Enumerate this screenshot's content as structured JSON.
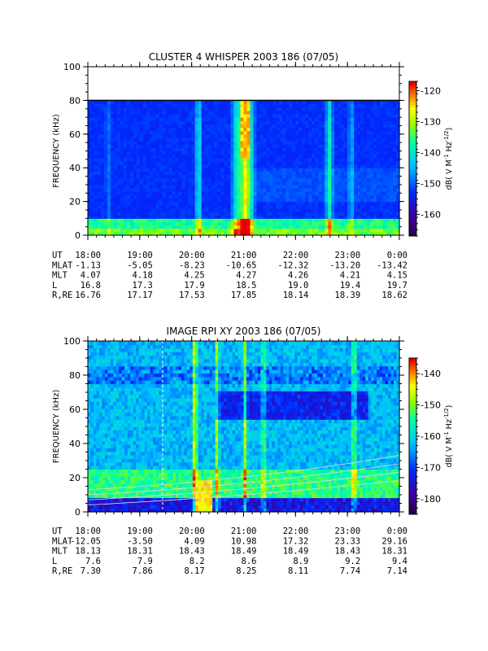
{
  "chart_data": [
    {
      "type": "heatmap",
      "title": "CLUSTER 4 WHISPER 2003 186 (07/05)",
      "ylabel": "FREQUENCY (kHz)",
      "ylim": [
        0,
        100
      ],
      "y_ticks": [
        "0",
        "20",
        "40",
        "60",
        "80",
        "100"
      ],
      "x_ticks": [
        "18:00",
        "19:00",
        "20:00",
        "21:00",
        "22:00",
        "23:00",
        "0:00"
      ],
      "colorbar": {
        "label": "dB( V M^-1 Hz^-1/2 )",
        "range": [
          -167,
          -117
        ],
        "ticks": [
          "-120",
          "-130",
          "-140",
          "-150",
          "-160"
        ]
      },
      "ephemeris": {
        "UT": [
          "18:00",
          "19:00",
          "20:00",
          "21:00",
          "22:00",
          "23:00",
          "0:00"
        ],
        "MLAT": [
          "-1.13",
          "-5.05",
          "-8.23",
          "-10.65",
          "-12.32",
          "-13.20",
          "-13.42"
        ],
        "MLT": [
          "4.07",
          "4.18",
          "4.25",
          "4.27",
          "4.26",
          "4.21",
          "4.15"
        ],
        "L": [
          "16.8",
          "17.3",
          "17.9",
          "18.5",
          "19.0",
          "19.4",
          "19.7"
        ],
        "R,RE": [
          "16.76",
          "17.17",
          "17.53",
          "17.85",
          "18.14",
          "18.39",
          "18.62"
        ]
      }
    },
    {
      "type": "heatmap",
      "title": "IMAGE RPI XY 2003 186 (07/05)",
      "ylabel": "FREQUENCY (kHz)",
      "ylim": [
        0,
        100
      ],
      "y_ticks": [
        "0",
        "20",
        "40",
        "60",
        "80",
        "100"
      ],
      "x_ticks": [
        "18:00",
        "19:00",
        "20:00",
        "21:00",
        "22:00",
        "23:00",
        "0:00"
      ],
      "colorbar": {
        "label": "dB( V M^-1 Hz^-1/2 )",
        "range": [
          -185,
          -135
        ],
        "ticks": [
          "-140",
          "-150",
          "-160",
          "-170",
          "-180"
        ]
      },
      "ephemeris": {
        "UT": [
          "18:00",
          "19:00",
          "20:00",
          "21:00",
          "22:00",
          "23:00",
          "0:00"
        ],
        "MLAT": [
          "-12.05",
          "-3.50",
          "4.09",
          "10.98",
          "17.32",
          "23.33",
          "29.16"
        ],
        "MLT": [
          "18.13",
          "18.31",
          "18.43",
          "18.49",
          "18.49",
          "18.43",
          "18.31"
        ],
        "L": [
          "7.6",
          "7.9",
          "8.2",
          "8.6",
          "8.9",
          "9.2",
          "9.4"
        ],
        "R,RE": [
          "7.30",
          "7.86",
          "8.17",
          "8.25",
          "8.11",
          "7.74",
          "7.14"
        ]
      }
    }
  ]
}
